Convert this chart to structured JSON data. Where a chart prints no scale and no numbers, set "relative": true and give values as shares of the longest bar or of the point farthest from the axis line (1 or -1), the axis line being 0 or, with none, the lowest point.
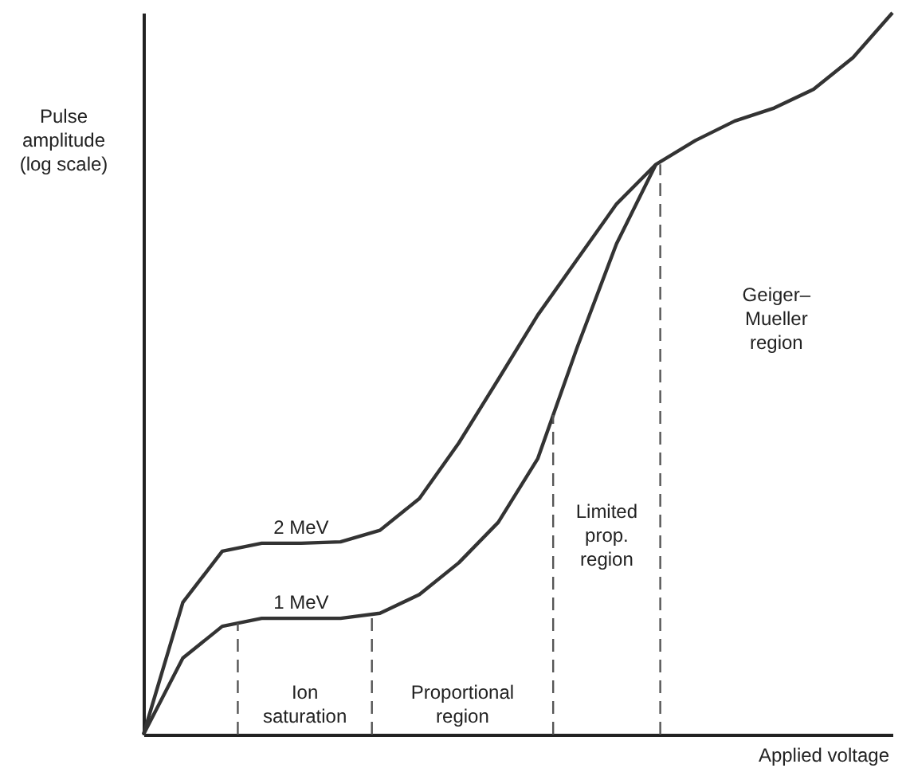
{
  "chart_data": {
    "type": "line",
    "relative": true,
    "ylabel": "Pulse\namplitude\n(log scale)",
    "xlabel": "Applied voltage",
    "categories": [
      null,
      null,
      null,
      null,
      null,
      null,
      null,
      null,
      null,
      null,
      null,
      null,
      null,
      null,
      null,
      null,
      null,
      null,
      null,
      null
    ],
    "series": [
      {
        "name": "2 MeV",
        "color": "#333333",
        "values": [
          0,
          0.183,
          0.254,
          0.265,
          0.265,
          0.267,
          0.283,
          0.327,
          0.404,
          0.492,
          0.581,
          0.658,
          0.735,
          0.79,
          0.823,
          0.85,
          0.868,
          0.894,
          0.938,
          1
        ]
      },
      {
        "name": "1 MeV",
        "color": "#333333",
        "values": [
          0,
          0.106,
          0.15,
          0.161,
          0.161,
          0.161,
          0.168,
          0.194,
          0.238,
          0.294,
          0.382,
          0.536,
          0.68,
          0.79,
          null,
          null,
          null,
          null,
          null,
          null
        ]
      }
    ],
    "annotations": [
      "Ion\nsaturation",
      "Proportional\nregion",
      "Limited\nprop.\nregion",
      "Geiger–\nMueller\nregion"
    ],
    "marker": "none",
    "line_style": "solid"
  }
}
